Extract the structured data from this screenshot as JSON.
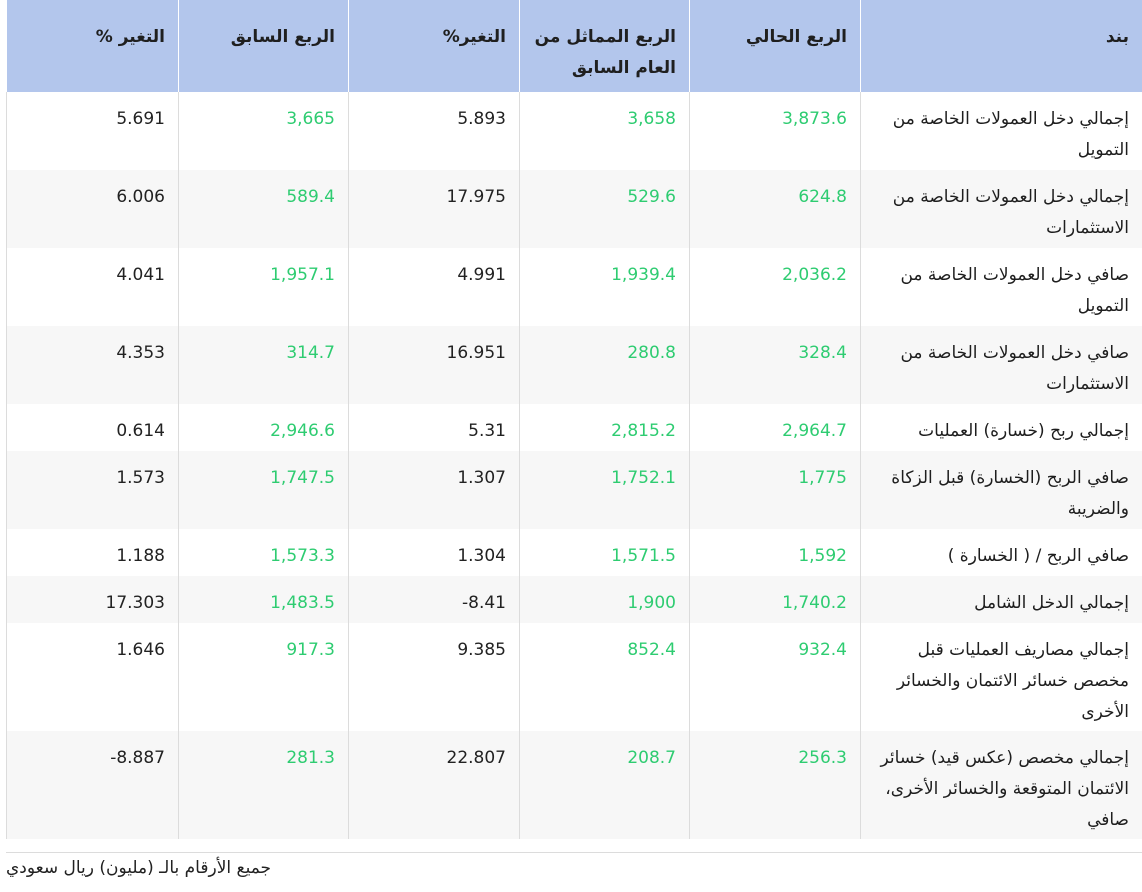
{
  "headers": {
    "item": "بند",
    "current_q": "الربع الحالي",
    "same_q_prev_year": "الربع المماثل من العام السابق",
    "change_pct_a": "التغير%",
    "prev_q": "الربع السابق",
    "change_pct_b": "التغير %"
  },
  "rows": [
    {
      "item": "إجمالي دخل العمولات الخاصة من التمويل",
      "current": "3,873.6",
      "same_prev_year": "3,658",
      "change_a": "5.893",
      "prev_q": "3,665",
      "change_b": "5.691"
    },
    {
      "item": "إجمالي دخل العمولات الخاصة من الاستثمارات",
      "current": "624.8",
      "same_prev_year": "529.6",
      "change_a": "17.975",
      "prev_q": "589.4",
      "change_b": "6.006"
    },
    {
      "item": "صافي دخل العمولات الخاصة من التمويل",
      "current": "2,036.2",
      "same_prev_year": "1,939.4",
      "change_a": "4.991",
      "prev_q": "1,957.1",
      "change_b": "4.041"
    },
    {
      "item": "صافي دخل العمولات الخاصة من الاستثمارات",
      "current": "328.4",
      "same_prev_year": "280.8",
      "change_a": "16.951",
      "prev_q": "314.7",
      "change_b": "4.353"
    },
    {
      "item": "إجمالي ربح (خسارة) العمليات",
      "current": "2,964.7",
      "same_prev_year": "2,815.2",
      "change_a": "5.31",
      "prev_q": "2,946.6",
      "change_b": "0.614"
    },
    {
      "item": "صافي الربح (الخسارة) قبل الزكاة والضريبة",
      "current": "1,775",
      "same_prev_year": "1,752.1",
      "change_a": "1.307",
      "prev_q": "1,747.5",
      "change_b": "1.573"
    },
    {
      "item": "صافي الربح / ( الخسارة )",
      "current": "1,592",
      "same_prev_year": "1,571.5",
      "change_a": "1.304",
      "prev_q": "1,573.3",
      "change_b": "1.188"
    },
    {
      "item": "إجمالي الدخل الشامل",
      "current": "1,740.2",
      "same_prev_year": "1,900",
      "change_a": "8.41-",
      "prev_q": "1,483.5",
      "change_b": "17.303"
    },
    {
      "item": "إجمالي مصاريف العمليات قبل مخصص خسائر الائتمان والخسائر الأخرى",
      "current": "932.4",
      "same_prev_year": "852.4",
      "change_a": "9.385",
      "prev_q": "917.3",
      "change_b": "1.646"
    },
    {
      "item": "إجمالي مخصص (عكس قيد) خسائر الائتمان المتوقعة والخسائر الأخرى، صافي",
      "current": "256.3",
      "same_prev_year": "208.7",
      "change_a": "22.807",
      "prev_q": "281.3",
      "change_b": "8.887-"
    }
  ],
  "footnote": "جميع الأرقام بالـ (مليون) ريال سعودي",
  "colors": {
    "header_bg": "#b3c6ec",
    "green_value": "#2ecc71",
    "stripe_bg": "#f7f7f7",
    "border": "#dcdcdc"
  }
}
